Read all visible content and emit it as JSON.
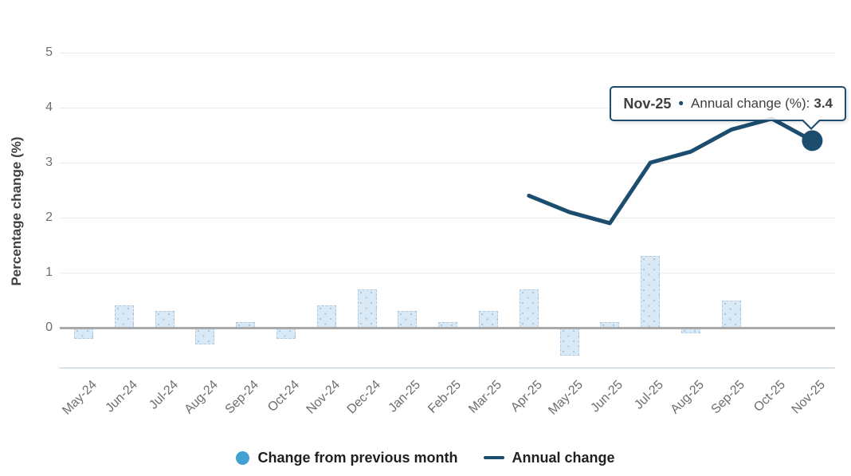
{
  "chart": {
    "ylabel": "Percentage change (%)",
    "legend": [
      {
        "label": "Change from previous month",
        "marker": "circle"
      },
      {
        "label": "Annual change",
        "marker": "line"
      }
    ],
    "tooltip": {
      "category": "Nov-25",
      "bullet": "•",
      "series_label": "Annual change (%):",
      "value": "3.4"
    }
  },
  "chart_data": {
    "type": "combo",
    "categories": [
      "May-24",
      "Jun-24",
      "Jul-24",
      "Aug-24",
      "Sep-24",
      "Oct-24",
      "Nov-24",
      "Dec-24",
      "Jan-25",
      "Feb-25",
      "Mar-25",
      "Apr-25",
      "May-25",
      "Jun-25",
      "Jul-25",
      "Aug-25",
      "Sep-25",
      "Oct-25",
      "Nov-25"
    ],
    "series": [
      {
        "name": "Change from previous month",
        "type": "bar",
        "values": [
          -0.2,
          0.4,
          0.3,
          -0.3,
          0.1,
          -0.2,
          0.4,
          0.7,
          0.3,
          0.1,
          0.3,
          0.7,
          -0.5,
          0.1,
          1.3,
          -0.1,
          0.5,
          null,
          null
        ]
      },
      {
        "name": "Annual change",
        "type": "line",
        "values": [
          null,
          null,
          null,
          null,
          null,
          null,
          null,
          null,
          null,
          null,
          null,
          2.4,
          2.1,
          1.9,
          3.0,
          3.2,
          3.6,
          3.8,
          3.4
        ]
      }
    ],
    "title": "",
    "xlabel": "",
    "ylabel": "Percentage change (%)",
    "ylim": [
      -0.75,
      5
    ],
    "yticks": [
      0,
      1,
      2,
      3,
      4,
      5
    ],
    "grid": true,
    "legend_position": "bottom",
    "highlighted_point": {
      "category": "Nov-25",
      "series": "Annual change",
      "value": 3.4
    }
  },
  "colors": {
    "bar_fill": "#d9e9f6",
    "bar_dots": "#aac7de",
    "line": "#1c4d6e",
    "marker": "#1c4d6e",
    "legend_circle": "#42a0d3",
    "tooltip_border": "#1c4d6e",
    "gridline": "#d7d7d7",
    "zero_line": "#a9a9a9",
    "axis_bottom": "#b5cede",
    "text_dark": "#414042",
    "text_gray": "#6e6e6e"
  }
}
